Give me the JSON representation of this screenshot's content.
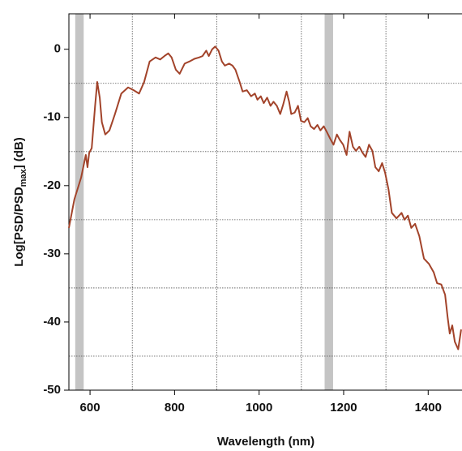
{
  "chart_data": {
    "type": "line",
    "xlabel": "Wavelength (nm)",
    "ylabel": {
      "main": "Log[PSD/PSD",
      "subscript": "max",
      "end": "] (dB)"
    },
    "xlim": [
      550,
      1480
    ],
    "ylim": [
      -50,
      5.2
    ],
    "xticks": [
      600,
      800,
      1000,
      1200,
      1400
    ],
    "yticks": [
      -50,
      -40,
      -30,
      -20,
      -10,
      0
    ],
    "x_grid": [
      700,
      900,
      1100,
      1300
    ],
    "y_grid": [
      -45,
      -35,
      -25,
      -15,
      -5
    ],
    "grid": true,
    "shaded_bands": [
      [
        565,
        585
      ],
      [
        1155,
        1175
      ]
    ],
    "band_color": "#c4c4c4",
    "series": [
      {
        "color": "#a2432a",
        "x": [
          550,
          563,
          579,
          586,
          590,
          594,
          598,
          604,
          612,
          617,
          623,
          628,
          636,
          646,
          659,
          674,
          690,
          703,
          716,
          728,
          741,
          755,
          766,
          776,
          785,
          793,
          803,
          812,
          824,
          835,
          847,
          858,
          866,
          875,
          881,
          889,
          896,
          904,
          912,
          919,
          929,
          937,
          944,
          954,
          961,
          971,
          981,
          990,
          996,
          1004,
          1011,
          1019,
          1027,
          1034,
          1042,
          1050,
          1057,
          1065,
          1071,
          1076,
          1084,
          1092,
          1099,
          1107,
          1115,
          1122,
          1130,
          1138,
          1145,
          1153,
          1160,
          1168,
          1176,
          1184,
          1191,
          1199,
          1207,
          1214,
          1222,
          1229,
          1237,
          1245,
          1252,
          1260,
          1268,
          1275,
          1283,
          1291,
          1298,
          1306,
          1314,
          1325,
          1337,
          1344,
          1352,
          1360,
          1369,
          1379,
          1390,
          1402,
          1413,
          1421,
          1431,
          1440,
          1446,
          1451,
          1457,
          1463,
          1471,
          1478
        ],
        "values": [
          -26.2,
          -22,
          -18.8,
          -16.7,
          -15.5,
          -17.3,
          -15.2,
          -14.5,
          -8.3,
          -4.8,
          -7.1,
          -10.7,
          -12.5,
          -11.9,
          -9.5,
          -6.5,
          -5.6,
          -6,
          -6.5,
          -4.8,
          -1.8,
          -1.2,
          -1.5,
          -1,
          -0.6,
          -1.2,
          -3,
          -3.6,
          -2.1,
          -1.8,
          -1.4,
          -1.2,
          -1,
          -0.2,
          -1,
          0,
          0.4,
          -0.2,
          -1.8,
          -2.4,
          -2.1,
          -2.4,
          -3,
          -4.8,
          -6.2,
          -6,
          -6.9,
          -6.5,
          -7.4,
          -6.9,
          -7.9,
          -7.1,
          -8.3,
          -7.7,
          -8.3,
          -9.5,
          -8.1,
          -6.2,
          -7.7,
          -9.5,
          -9.3,
          -8.3,
          -10.5,
          -10.7,
          -10.1,
          -11.3,
          -11.7,
          -11.1,
          -11.9,
          -11.3,
          -12.1,
          -13.1,
          -14,
          -12.5,
          -13.3,
          -14,
          -15.5,
          -12.1,
          -14.3,
          -14.9,
          -14.3,
          -15.2,
          -15.8,
          -14,
          -14.9,
          -17.3,
          -17.9,
          -16.7,
          -18.1,
          -20.5,
          -24,
          -24.8,
          -24,
          -25,
          -24.4,
          -26.2,
          -25.6,
          -27.4,
          -30.7,
          -31.5,
          -32.7,
          -34.3,
          -34.5,
          -36,
          -39.3,
          -41.7,
          -40.5,
          -42.9,
          -44,
          -41.1
        ]
      }
    ]
  }
}
